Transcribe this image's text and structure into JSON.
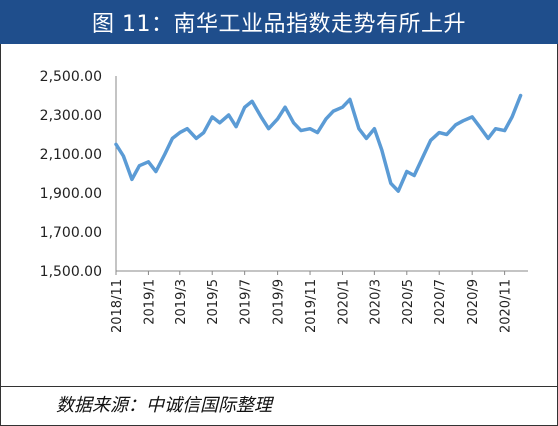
{
  "title": "图 11：南华工业品指数走势有所上升",
  "source": "数据来源：中诚信国际整理",
  "colors": {
    "header": "#1f4e8c",
    "line": "#5b9bd5"
  },
  "chart_data": {
    "type": "line",
    "title": "",
    "xlabel": "",
    "ylabel": "",
    "ylim": [
      1500,
      2500
    ],
    "y_ticks": [
      "1,500.00",
      "1,700.00",
      "1,900.00",
      "2,100.00",
      "2,300.00",
      "2,500.00"
    ],
    "x_ticks": [
      "2018/11",
      "2019/1",
      "2019/3",
      "2019/5",
      "2019/7",
      "2019/9",
      "2019/11",
      "2020/1",
      "2020/3",
      "2020/5",
      "2020/7",
      "2020/9",
      "2020/11"
    ],
    "grid": false,
    "legend": "none",
    "series": [
      {
        "name": "",
        "x": [
          "2018-11-01",
          "2018-11-15",
          "2018-12-01",
          "2018-12-15",
          "2019-01-01",
          "2019-01-15",
          "2019-02-01",
          "2019-02-15",
          "2019-03-01",
          "2019-03-15",
          "2019-04-01",
          "2019-04-15",
          "2019-05-01",
          "2019-05-15",
          "2019-06-01",
          "2019-06-15",
          "2019-07-01",
          "2019-07-15",
          "2019-08-01",
          "2019-08-15",
          "2019-09-01",
          "2019-09-15",
          "2019-10-01",
          "2019-10-15",
          "2019-11-01",
          "2019-11-15",
          "2019-12-01",
          "2019-12-15",
          "2020-01-01",
          "2020-01-15",
          "2020-02-01",
          "2020-02-15",
          "2020-03-01",
          "2020-03-15",
          "2020-04-01",
          "2020-04-15",
          "2020-05-01",
          "2020-05-15",
          "2020-06-01",
          "2020-06-15",
          "2020-07-01",
          "2020-07-15",
          "2020-08-01",
          "2020-08-15",
          "2020-09-01",
          "2020-09-15",
          "2020-10-01",
          "2020-10-15",
          "2020-11-01",
          "2020-11-15",
          "2020-12-01"
        ],
        "values": [
          2150,
          2090,
          1970,
          2040,
          2060,
          2010,
          2100,
          2180,
          2210,
          2230,
          2180,
          2210,
          2290,
          2260,
          2300,
          2240,
          2340,
          2370,
          2290,
          2230,
          2280,
          2340,
          2260,
          2220,
          2230,
          2210,
          2280,
          2320,
          2340,
          2380,
          2230,
          2180,
          2230,
          2120,
          1950,
          1910,
          2010,
          1990,
          2090,
          2170,
          2210,
          2200,
          2250,
          2270,
          2290,
          2240,
          2180,
          2230,
          2220,
          2290,
          2400
        ]
      }
    ]
  }
}
